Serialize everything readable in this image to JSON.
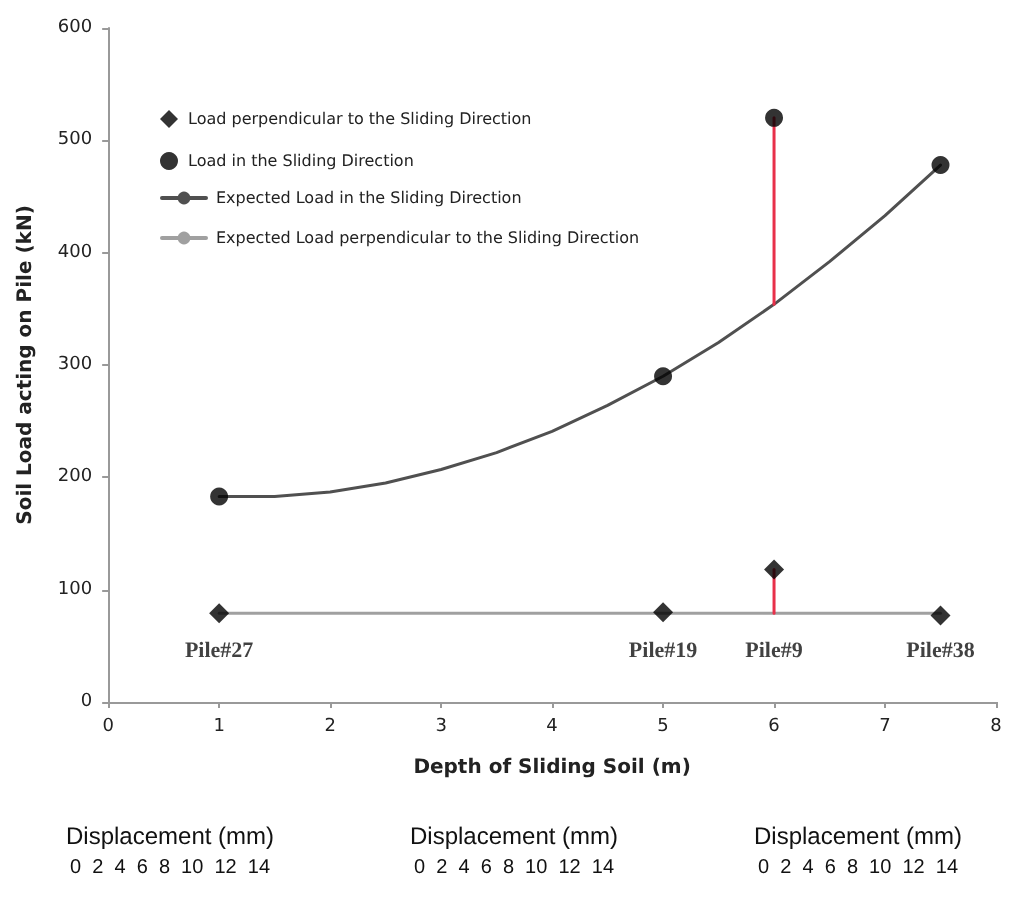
{
  "chart_data": {
    "type": "scatter",
    "xlabel": "Depth of Sliding Soil (m)",
    "ylabel": "Soil Load acting on Pile (kN)",
    "xlim": [
      0,
      8
    ],
    "xticks": [
      0,
      1,
      2,
      3,
      4,
      5,
      6,
      7,
      8
    ],
    "ylim": [
      0,
      600
    ],
    "yticks": [
      0,
      100,
      200,
      300,
      400,
      500,
      600
    ],
    "grid": false,
    "legend": "top left",
    "series": [
      {
        "name": "Load perpendicular to the Sliding Direction",
        "marker": "diamond",
        "color": "#000000",
        "x": [
          1,
          5,
          6,
          7.5
        ],
        "values": [
          79,
          80,
          118,
          77
        ]
      },
      {
        "name": "Load in the Sliding Direction",
        "marker": "circle",
        "color": "#000000",
        "x": [
          1,
          5,
          6,
          7.5
        ],
        "values": [
          183,
          290,
          520,
          478
        ]
      },
      {
        "name": "Expected Load in the Sliding Direction",
        "type": "line",
        "marker": "none",
        "color": "#505050",
        "x": [
          1,
          1.5,
          2,
          2.5,
          3,
          3.5,
          4,
          4.5,
          5,
          5.5,
          6,
          6.5,
          7,
          7.5
        ],
        "values": [
          183,
          183,
          187,
          195,
          207,
          222,
          241,
          264,
          290,
          320,
          354,
          392,
          433,
          478
        ]
      },
      {
        "name": "Expected Load perpendicular to the Sliding Direction",
        "type": "line",
        "marker": "none",
        "color": "#a0a0a0",
        "x": [
          1,
          7.5
        ],
        "values": [
          79,
          79
        ]
      },
      {
        "type": "line",
        "marker": "none",
        "color": "#e8304a",
        "x": [
          6,
          6
        ],
        "values": [
          354,
          520
        ]
      },
      {
        "type": "line",
        "marker": "none",
        "color": "#e8304a",
        "x": [
          6,
          6
        ],
        "values": [
          79,
          118
        ]
      }
    ],
    "annotations": [
      "Pile#27",
      "Pile#19",
      "Pile#9",
      "Pile#38",
      "Displacement (mm)",
      "0  2  4  6  8  10  12  14",
      "Displacement (mm)",
      "0  2  4  6  8  10  12  14",
      "Displacement (mm)",
      "0  2  4  6  8  10  12  14"
    ]
  }
}
